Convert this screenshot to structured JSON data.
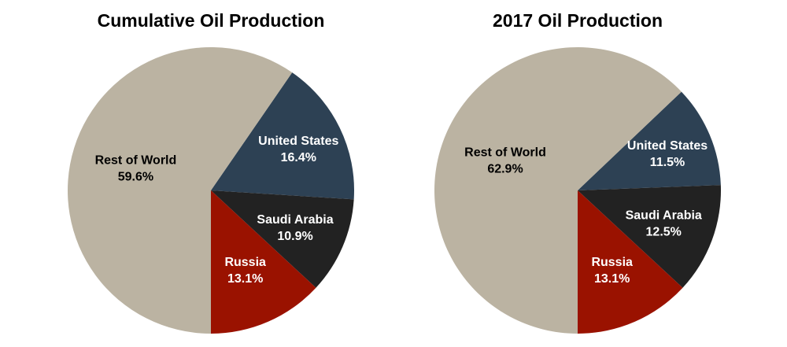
{
  "chart_data": [
    {
      "type": "pie",
      "title": "Cumulative Oil Production",
      "categories": [
        "United States",
        "Saudi Arabia",
        "Russia",
        "Rest of World"
      ],
      "values": [
        16.4,
        10.9,
        13.1,
        59.6
      ],
      "value_labels": [
        "16.4%",
        "10.9%",
        "13.1%",
        "59.6%"
      ],
      "colors": [
        "#2d4154",
        "#222222",
        "#9a1200",
        "#bbb3a2"
      ],
      "label_colors": [
        "#ffffff",
        "#ffffff",
        "#ffffff",
        "#000000"
      ]
    },
    {
      "type": "pie",
      "title": "2017 Oil Production",
      "categories": [
        "United States",
        "Saudi Arabia",
        "Russia",
        "Rest of World"
      ],
      "values": [
        11.5,
        12.5,
        13.1,
        62.9
      ],
      "value_labels": [
        "11.5%",
        "12.5%",
        "13.1%",
        "62.9%"
      ],
      "colors": [
        "#2d4154",
        "#222222",
        "#9a1200",
        "#bbb3a2"
      ],
      "label_colors": [
        "#ffffff",
        "#ffffff",
        "#ffffff",
        "#000000"
      ]
    }
  ]
}
